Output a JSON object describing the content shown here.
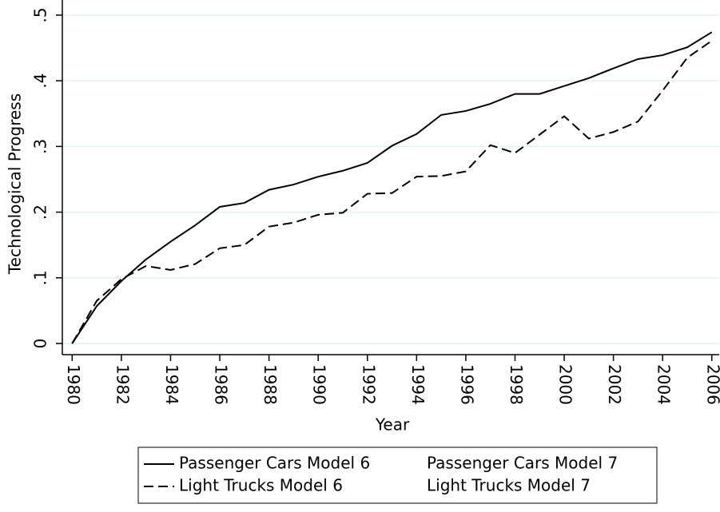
{
  "chart_data": {
    "type": "line",
    "x_label": "Year",
    "y_label": "Technological Progress",
    "x": [
      1980,
      1981,
      1982,
      1983,
      1984,
      1985,
      1986,
      1987,
      1988,
      1989,
      1990,
      1991,
      1992,
      1993,
      1994,
      1995,
      1996,
      1997,
      1998,
      1999,
      2000,
      2001,
      2002,
      2003,
      2004,
      2005,
      2006
    ],
    "series": [
      {
        "name": "Passenger Cars Model 6",
        "color": "#000000",
        "style": "solid",
        "values": [
          0,
          0.057,
          0.095,
          0.128,
          0.155,
          0.18,
          0.208,
          0.214,
          0.234,
          0.242,
          0.254,
          0.263,
          0.275,
          0.301,
          0.319,
          0.348,
          0.354,
          0.365,
          0.38,
          0.38,
          0.392,
          0.404,
          0.419,
          0.433,
          0.439,
          0.451,
          0.474
        ]
      },
      {
        "name": "Passenger Cars Model 7",
        "values": [
          null,
          null,
          null,
          null,
          null,
          null,
          null,
          null,
          null,
          null,
          null,
          null,
          null,
          null,
          null,
          null,
          null,
          null,
          null,
          null,
          null,
          null,
          null,
          null,
          null,
          null,
          null
        ]
      },
      {
        "name": "Light Trucks Model 6",
        "color": "#000000",
        "style": "dashed",
        "values": [
          0,
          0.065,
          0.098,
          0.118,
          0.112,
          0.121,
          0.145,
          0.15,
          0.178,
          0.184,
          0.196,
          0.199,
          0.228,
          0.229,
          0.254,
          0.255,
          0.262,
          0.302,
          0.29,
          0.318,
          0.346,
          0.312,
          0.322,
          0.338,
          0.385,
          0.435,
          0.461
        ]
      },
      {
        "name": "Light Trucks Model 7",
        "values": [
          null,
          null,
          null,
          null,
          null,
          null,
          null,
          null,
          null,
          null,
          null,
          null,
          null,
          null,
          null,
          null,
          null,
          null,
          null,
          null,
          null,
          null,
          null,
          null,
          null,
          null,
          null
        ]
      }
    ],
    "xlim": [
      1979.6,
      2006.3
    ],
    "xticks": [
      1980,
      1982,
      1984,
      1986,
      1988,
      1990,
      1992,
      1994,
      1996,
      1998,
      2000,
      2002,
      2004,
      2006
    ],
    "ylim": [
      -0.017,
      0.523
    ],
    "yticks": [
      0,
      {
        "value": 0.1,
        "label": ".1"
      },
      {
        "value": 0.2,
        "label": ".2"
      },
      {
        "value": 0.3,
        "label": ".3"
      },
      {
        "value": 0.4,
        "label": ".4"
      },
      {
        "value": 0.5,
        "label": ".5"
      }
    ],
    "grid": true,
    "grid_color": "#e6eff1"
  }
}
